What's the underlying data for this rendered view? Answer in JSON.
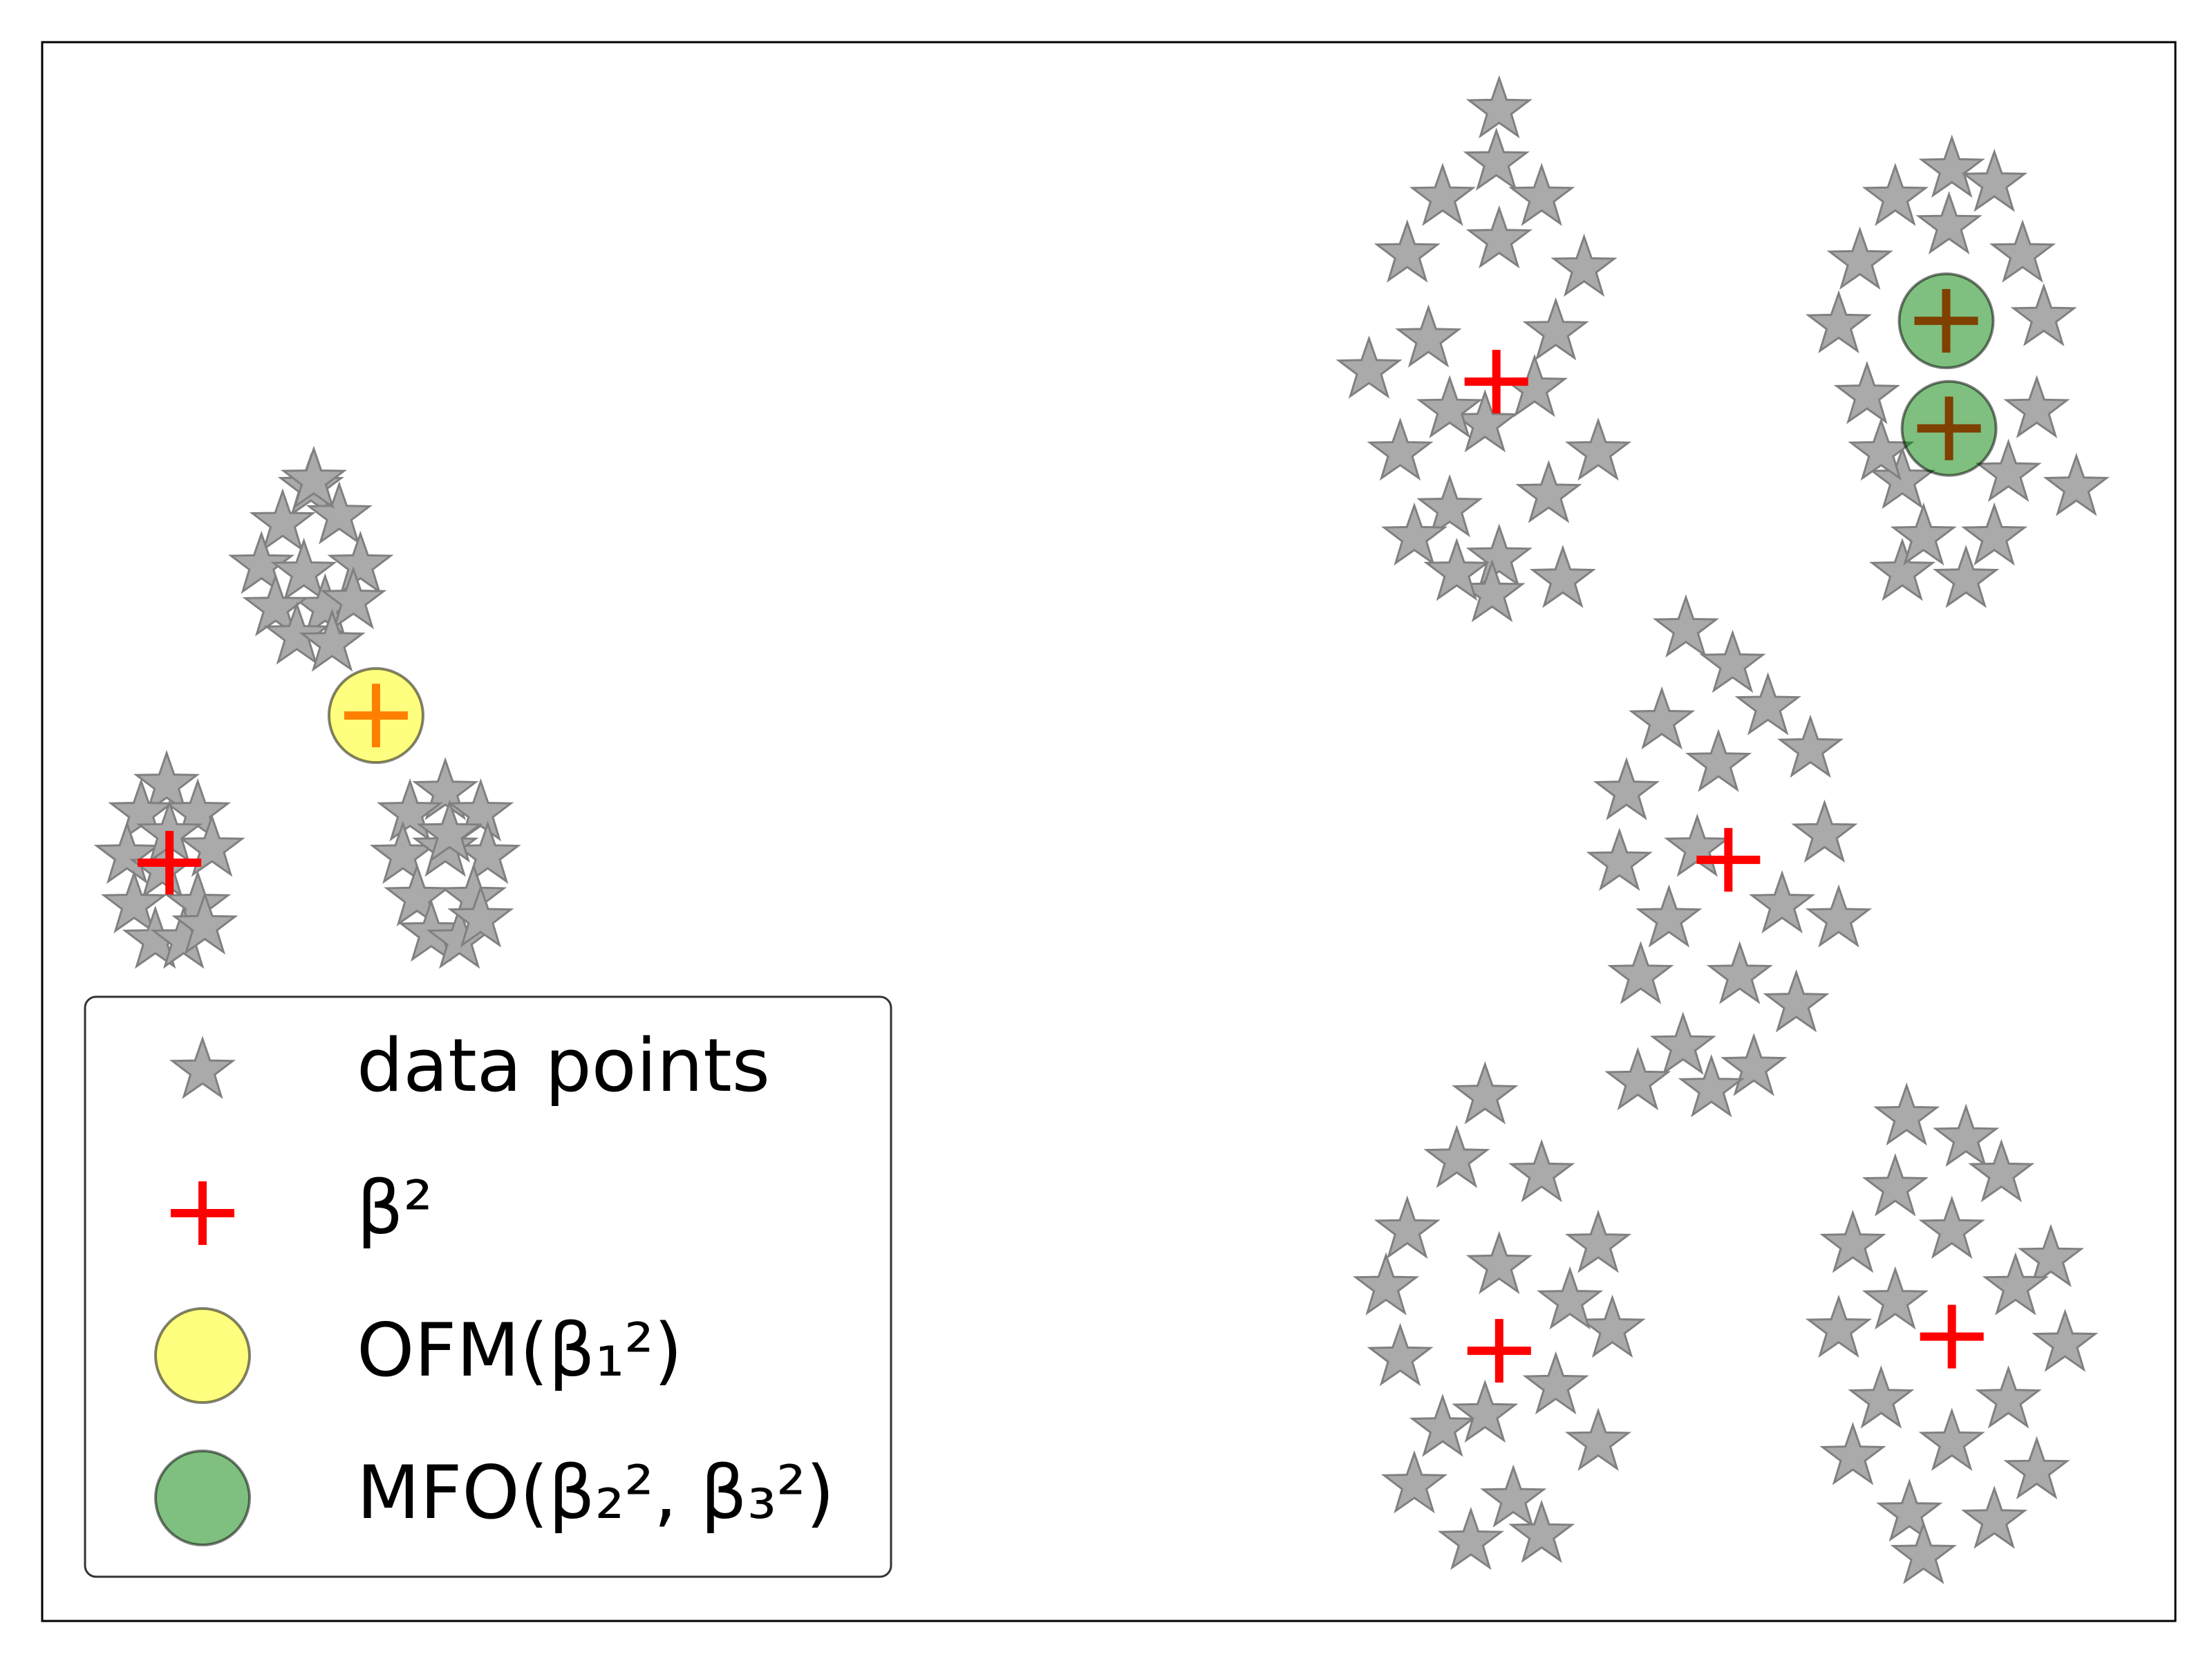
{
  "chart_data": {
    "type": "scatter",
    "xlim": [
      0,
      1508
    ],
    "ylim": [
      0,
      1116
    ],
    "legend": "lower left",
    "series": [
      {
        "name": "data points",
        "marker": "star",
        "color": "#aaaaaa",
        "edgecolor": "#808080",
        "x": [
          190,
          170,
          210,
          155,
          225,
          185,
          200,
          165,
          220,
          180,
          205,
          192,
          88,
          70,
          110,
          60,
          120,
          85,
          65,
          110,
          80,
          100,
          115,
          90,
          285,
          260,
          310,
          255,
          315,
          285,
          265,
          305,
          275,
          295,
          310,
          288,
          1030,
          1028,
          990,
          1060,
          965,
          1030,
          1090,
          938,
          980,
          1070,
          1020,
          960,
          1100,
          995,
          1065,
          1030,
          970,
          1075,
          1025,
          1000,
          1055,
          995,
          1350,
          1310,
          1380,
          1285,
          1400,
          1270,
          1415,
          1290,
          1410,
          1315,
          1390,
          1438,
          1315,
          1360,
          1330,
          1380,
          1348,
          1300,
          1162,
          1195,
          1220,
          1145,
          1250,
          1120,
          1185,
          1260,
          1115,
          1230,
          1150,
          1270,
          1130,
          1200,
          1240,
          1160,
          1210,
          1128,
          1180,
          1170,
          1020,
          1000,
          1060,
          965,
          1100,
          950,
          1030,
          1110,
          960,
          1070,
          990,
          1100,
          970,
          1040,
          1010,
          1060,
          1020,
          1080,
          1318,
          1360,
          1385,
          1310,
          1280,
          1420,
          1350,
          1270,
          1430,
          1300,
          1390,
          1280,
          1410,
          1320,
          1380,
          1330,
          1350,
          1310,
          1395
        ],
        "values": [
          801,
          776,
          781,
          746,
          746,
          741,
          716,
          716,
          721,
          696,
          691,
          806,
          591,
          571,
          571,
          541,
          546,
          531,
          506,
          506,
          481,
          481,
          491,
          556,
          586,
          571,
          571,
          541,
          541,
          546,
          511,
          511,
          486,
          481,
          496,
          556,
          1068,
          1031,
          1006,
          1006,
          966,
          976,
          956,
          884,
          906,
          911,
          846,
          826,
          826,
          786,
          796,
          751,
          766,
          736,
          726,
          741,
          871,
          856,
          1026,
          1006,
          1016,
          961,
          966,
          916,
          921,
          866,
          856,
          806,
          811,
          801,
          741,
          736,
          766,
          766,
          986,
          826,
          701,
          676,
          646,
          636,
          616,
          586,
          606,
          556,
          536,
          506,
          496,
          496,
          456,
          456,
          436,
          406,
          391,
          381,
          376,
          546,
          371,
          326,
          316,
          276,
          266,
          236,
          251,
          206,
          186,
          166,
          136,
          126,
          96,
          86,
          56,
          61,
          146,
          226,
          356,
          341,
          316,
          306,
          266,
          256,
          276,
          206,
          196,
          156,
          156,
          116,
          106,
          76,
          71,
          46,
          126,
          226,
          236
        ]
      },
      {
        "name": "β²",
        "marker": "plus",
        "color": "#ff0000",
        "x": [
          90,
          236,
          1028,
          1346,
          1348,
          1192,
          1030,
          1350
        ],
        "values": [
          536,
          640,
          876,
          919,
          843,
          538,
          191,
          201
        ]
      },
      {
        "name": "OFM(β₁²)",
        "marker": "circle",
        "color": "#ffff00",
        "alpha": 0.5,
        "x": [
          236
        ],
        "values": [
          640
        ]
      },
      {
        "name": "MFO(β₂², β₃²)",
        "marker": "circle",
        "color": "#008000",
        "alpha": 0.5,
        "x": [
          1346,
          1348
        ],
        "values": [
          919,
          843
        ]
      }
    ]
  }
}
